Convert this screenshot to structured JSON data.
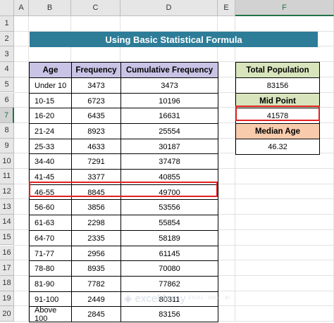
{
  "columns": [
    "A",
    "B",
    "C",
    "D",
    "E",
    "F"
  ],
  "rows": [
    "1",
    "2",
    "3",
    "4",
    "5",
    "6",
    "7",
    "8",
    "9",
    "10",
    "11",
    "12",
    "13",
    "14",
    "15",
    "16",
    "17",
    "18",
    "19",
    "20"
  ],
  "title": "Using Basic Statistical Formula",
  "table": {
    "headers": [
      "Age",
      "Frequency",
      "Cumulative Frequency"
    ],
    "rows": [
      [
        "Under 10",
        "3473",
        "3473"
      ],
      [
        "10-15",
        "6723",
        "10196"
      ],
      [
        "16-20",
        "6435",
        "16631"
      ],
      [
        "21-24",
        "8923",
        "25554"
      ],
      [
        "25-33",
        "4633",
        "30187"
      ],
      [
        "34-40",
        "7291",
        "37478"
      ],
      [
        "41-45",
        "3377",
        "40855"
      ],
      [
        "46-55",
        "8845",
        "49700"
      ],
      [
        "56-60",
        "3856",
        "53556"
      ],
      [
        "61-63",
        "2298",
        "55854"
      ],
      [
        "64-70",
        "2335",
        "58189"
      ],
      [
        "71-77",
        "2956",
        "61145"
      ],
      [
        "78-80",
        "8935",
        "70080"
      ],
      [
        "81-90",
        "7782",
        "77862"
      ],
      [
        "91-100",
        "2449",
        "80311"
      ],
      [
        "Above 100",
        "2845",
        "83156"
      ]
    ]
  },
  "summary": {
    "total_population_label": "Total Population",
    "total_population_value": "83156",
    "mid_point_label": "Mid Point",
    "mid_point_value": "41578",
    "median_age_label": "Median Age",
    "median_age_value": "46.32"
  },
  "watermark": {
    "brand": "exceldemy",
    "tagline": "EXCEL · DATA · BI"
  }
}
